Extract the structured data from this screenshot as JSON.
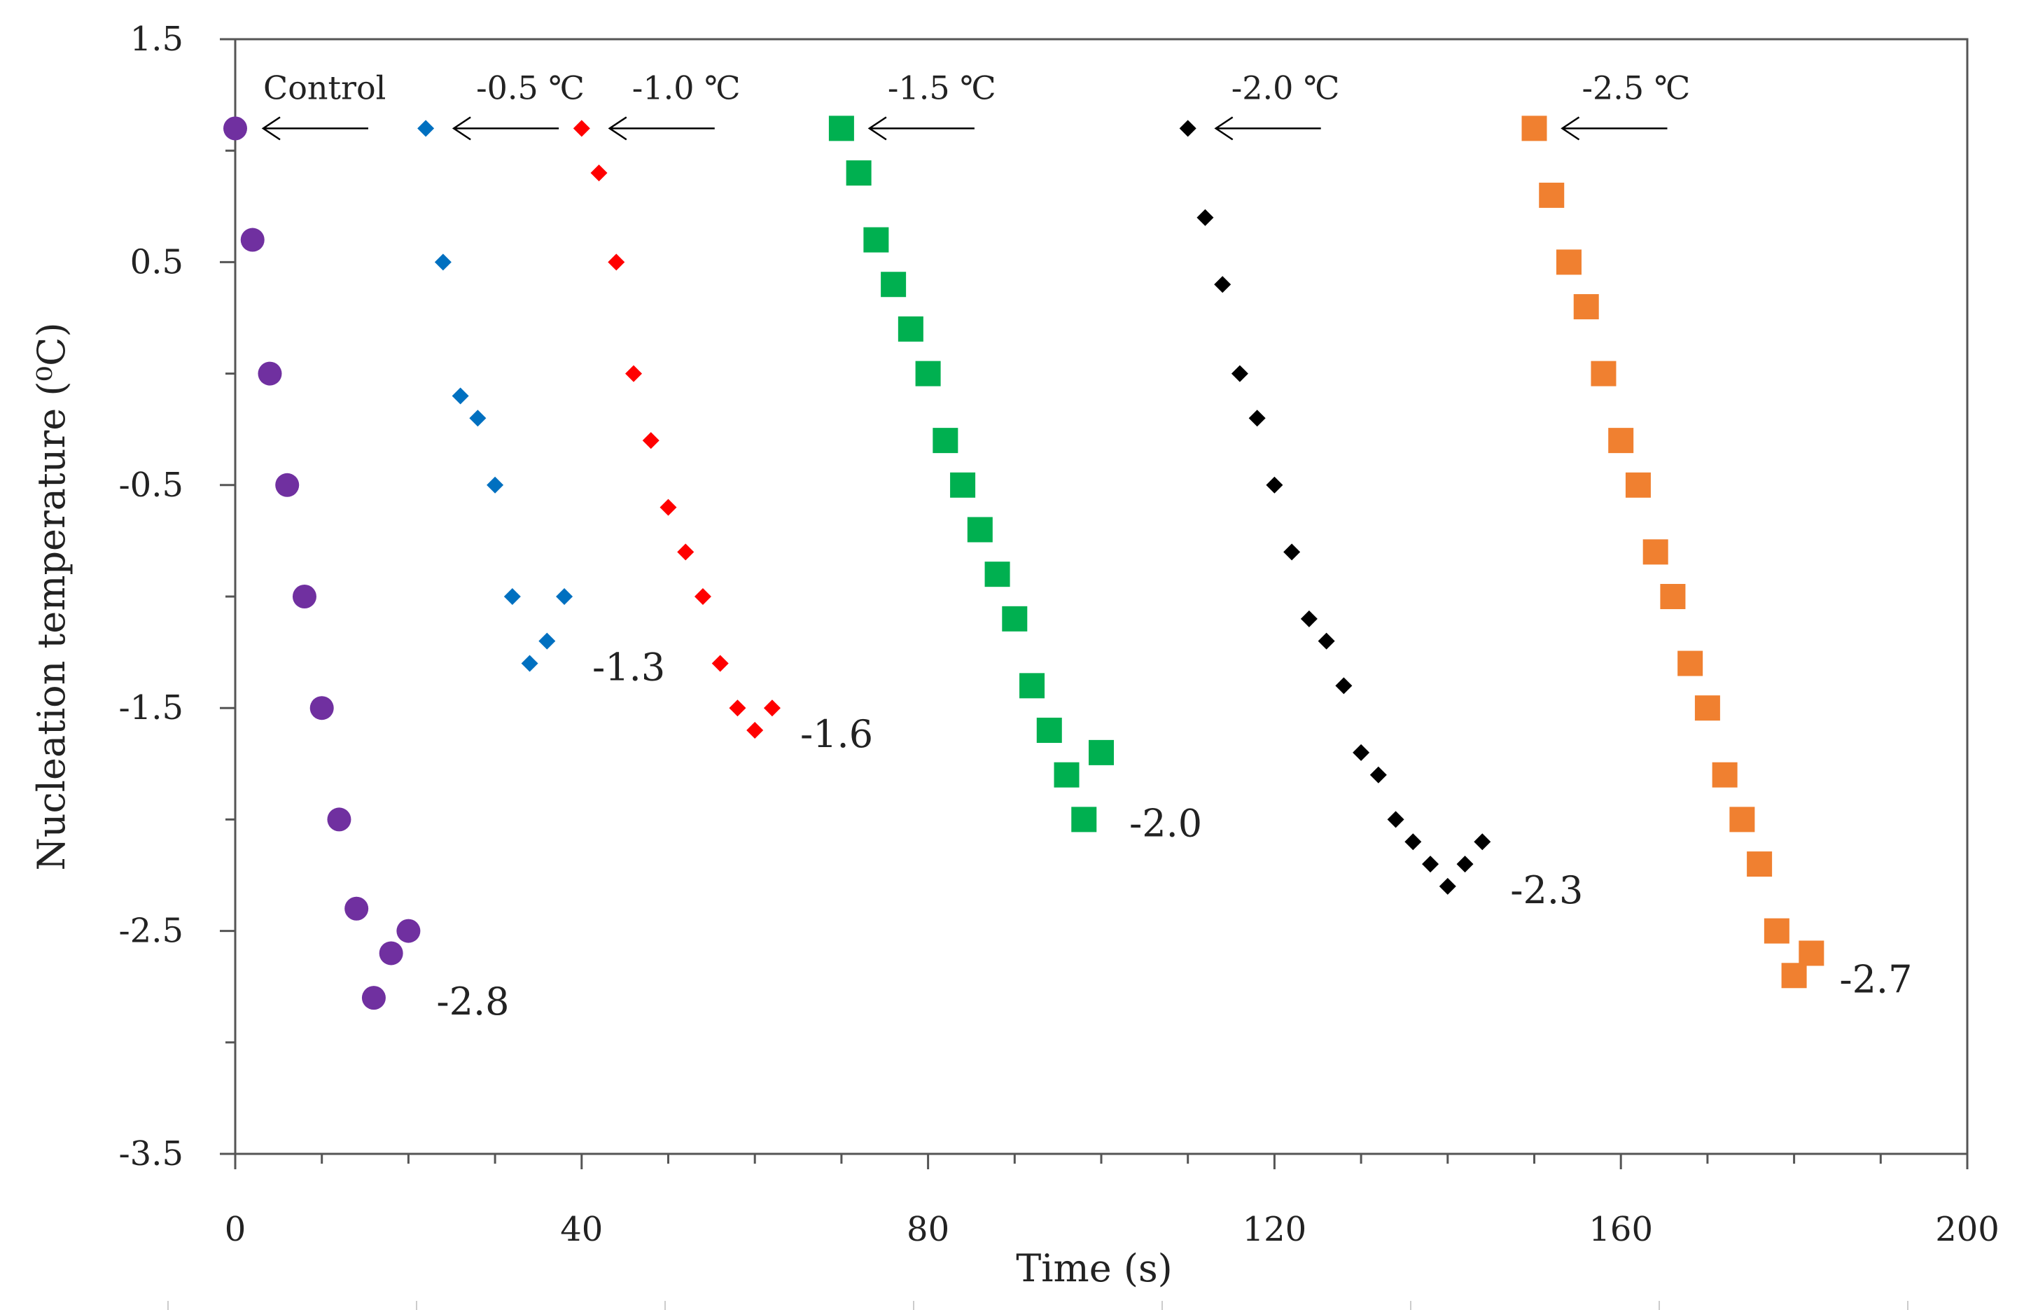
{
  "chart_data": {
    "type": "scatter",
    "title": "",
    "xlabel": "Time (s)",
    "ylabel": "Nucleation temperature (⁰C)",
    "xlim": [
      0,
      200
    ],
    "ylim": [
      -3.5,
      1.5
    ],
    "xticks": [
      0,
      40,
      80,
      120,
      160,
      200
    ],
    "xtick_labels": [
      "0",
      "40",
      "80",
      "120",
      "160",
      "200"
    ],
    "yticks": [
      1.5,
      0.5,
      -0.5,
      -1.5,
      -2.5,
      -3.5
    ],
    "ytick_labels": [
      "1.5",
      "0.5",
      "-0.5",
      "-1.5",
      "-2.5",
      "-3.5"
    ],
    "grid": false,
    "legend": "none",
    "series": [
      {
        "name": "Control",
        "annotation": "Control",
        "end_label": "-2.8",
        "marker": "circle",
        "color": "#7030a0",
        "x": [
          0,
          2,
          4,
          6,
          8,
          10,
          12,
          14,
          16,
          18,
          20
        ],
        "y": [
          1.1,
          0.6,
          0.0,
          -0.5,
          -1.0,
          -1.5,
          -2.0,
          -2.4,
          -2.8,
          -2.6,
          -2.5
        ]
      },
      {
        "name": "-0.5 °C",
        "annotation": "-0.5 ℃",
        "end_label": "-1.3",
        "marker": "diamond",
        "color": "#0070c0",
        "x": [
          22,
          24,
          26,
          28,
          30,
          32,
          34,
          36,
          38
        ],
        "y": [
          1.1,
          0.5,
          -0.1,
          -0.2,
          -0.5,
          -1.0,
          -1.3,
          -1.2,
          -1.0
        ]
      },
      {
        "name": "-1.0 °C",
        "annotation": "-1.0 ℃",
        "end_label": "-1.6",
        "marker": "diamond",
        "color": "#ff0000",
        "x": [
          40,
          42,
          44,
          46,
          48,
          50,
          52,
          54,
          56,
          58,
          60,
          62
        ],
        "y": [
          1.1,
          0.9,
          0.5,
          0.0,
          -0.3,
          -0.6,
          -0.8,
          -1.0,
          -1.3,
          -1.5,
          -1.6,
          -1.5
        ]
      },
      {
        "name": "-1.5 °C",
        "annotation": "-1.5 ℃",
        "end_label": "-2.0",
        "marker": "square",
        "color": "#00b050",
        "x": [
          70,
          72,
          74,
          76,
          78,
          80,
          82,
          84,
          86,
          88,
          90,
          92,
          94,
          96,
          98,
          100
        ],
        "y": [
          1.1,
          0.9,
          0.6,
          0.4,
          0.2,
          0.0,
          -0.3,
          -0.5,
          -0.7,
          -0.9,
          -1.1,
          -1.4,
          -1.6,
          -1.8,
          -2.0,
          -1.7
        ]
      },
      {
        "name": "-2.0 °C",
        "annotation": "-2.0 ℃",
        "end_label": "-2.3",
        "marker": "diamond",
        "color": "#000000",
        "x": [
          110,
          112,
          114,
          116,
          118,
          120,
          122,
          124,
          126,
          128,
          130,
          132,
          134,
          136,
          138,
          140,
          142,
          144
        ],
        "y": [
          1.1,
          0.7,
          0.4,
          0.0,
          -0.2,
          -0.5,
          -0.8,
          -1.1,
          -1.2,
          -1.4,
          -1.7,
          -1.8,
          -2.0,
          -2.1,
          -2.2,
          -2.3,
          -2.2,
          -2.1
        ]
      },
      {
        "name": "-2.5 °C",
        "annotation": "-2.5 ℃",
        "end_label": "-2.7",
        "marker": "square",
        "color": "#f08030",
        "x": [
          150,
          152,
          154,
          156,
          158,
          160,
          162,
          164,
          166,
          168,
          170,
          172,
          174,
          176,
          178,
          180,
          182
        ],
        "y": [
          1.1,
          0.8,
          0.5,
          0.3,
          0.0,
          -0.3,
          -0.5,
          -0.8,
          -1.0,
          -1.3,
          -1.5,
          -1.8,
          -2.0,
          -2.2,
          -2.5,
          -2.7,
          -2.6
        ]
      }
    ]
  }
}
